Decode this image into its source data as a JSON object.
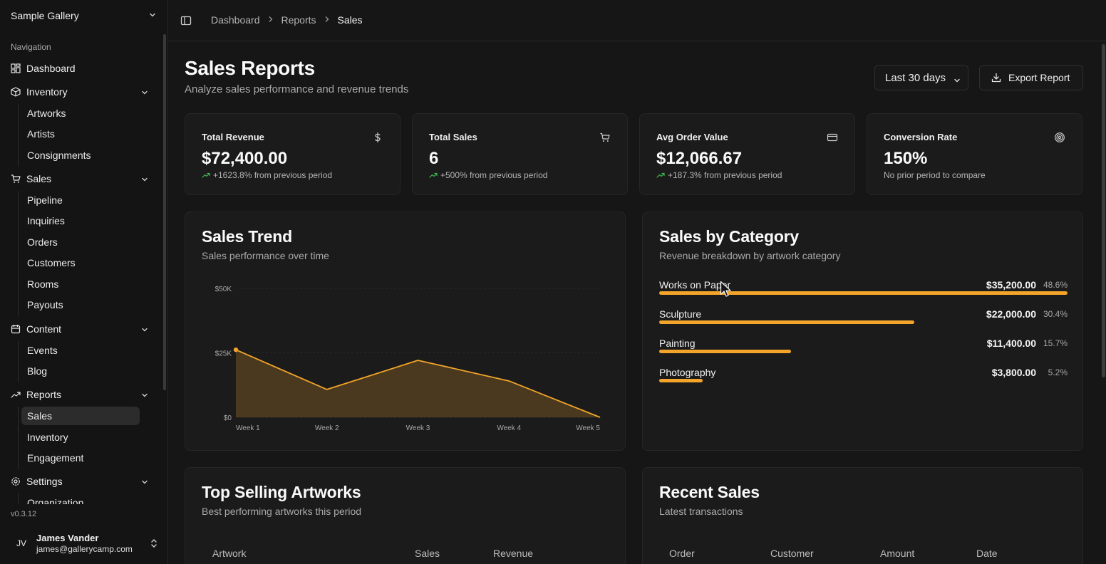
{
  "sidebar": {
    "org_name": "Sample Gallery",
    "nav_heading": "Navigation",
    "items": [
      {
        "label": "Dashboard"
      },
      {
        "label": "Inventory",
        "children": [
          "Artworks",
          "Artists",
          "Consignments"
        ]
      },
      {
        "label": "Sales",
        "children": [
          "Pipeline",
          "Inquiries",
          "Orders",
          "Customers",
          "Rooms",
          "Payouts"
        ]
      },
      {
        "label": "Content",
        "children": [
          "Events",
          "Blog"
        ]
      },
      {
        "label": "Reports",
        "children": [
          "Sales",
          "Inventory",
          "Engagement"
        ]
      },
      {
        "label": "Settings",
        "children": [
          "Organization"
        ]
      }
    ],
    "version": "v0.3.12",
    "user": {
      "initials": "JV",
      "name": "James Vander",
      "email": "james@gallerycamp.com"
    }
  },
  "breadcrumb": [
    "Dashboard",
    "Reports",
    "Sales"
  ],
  "header": {
    "title": "Sales Reports",
    "subtitle": "Analyze sales performance and revenue trends",
    "range_select": "Last 30 days",
    "export_label": "Export Report"
  },
  "stats": [
    {
      "label": "Total Revenue",
      "value": "$72,400.00",
      "change": "+1623.8% from previous period",
      "icon": "dollar-icon"
    },
    {
      "label": "Total Sales",
      "value": "6",
      "change": "+500% from previous period",
      "icon": "cart-icon"
    },
    {
      "label": "Avg Order Value",
      "value": "$12,066.67",
      "change": "+187.3% from previous period",
      "icon": "credit-card-icon"
    },
    {
      "label": "Conversion Rate",
      "value": "150%",
      "change": "No prior period to compare",
      "icon": "target-icon"
    }
  ],
  "sales_trend": {
    "title": "Sales Trend",
    "subtitle": "Sales performance over time"
  },
  "chart_data": {
    "type": "area",
    "categories": [
      "Week 1",
      "Week 2",
      "Week 3",
      "Week 4",
      "Week 5"
    ],
    "values": [
      26200,
      10800,
      22100,
      14100,
      0
    ],
    "ylim": [
      0,
      50000
    ],
    "yticks": [
      0,
      25000,
      50000
    ],
    "ytick_labels": [
      "$0",
      "$25K",
      "$50K"
    ],
    "grid": true,
    "color": "#f2a52a"
  },
  "sales_by_category": {
    "title": "Sales by Category",
    "subtitle": "Revenue breakdown by artwork category",
    "rows": [
      {
        "name": "Works on Paper",
        "amount": "$35,200.00",
        "pct": "48.6%",
        "share": 0.486
      },
      {
        "name": "Sculpture",
        "amount": "$22,000.00",
        "pct": "30.4%",
        "share": 0.304
      },
      {
        "name": "Painting",
        "amount": "$11,400.00",
        "pct": "15.7%",
        "share": 0.157
      },
      {
        "name": "Photography",
        "amount": "$3,800.00",
        "pct": "5.2%",
        "share": 0.052
      }
    ]
  },
  "top_selling": {
    "title": "Top Selling Artworks",
    "subtitle": "Best performing artworks this period",
    "columns": [
      "Artwork",
      "Sales",
      "Revenue"
    ]
  },
  "recent_sales": {
    "title": "Recent Sales",
    "subtitle": "Latest transactions",
    "columns": [
      "Order",
      "Customer",
      "Amount",
      "Date"
    ]
  },
  "colors": {
    "accent": "#f2a52a",
    "positive": "#3fb950",
    "background": "#161616",
    "card": "#1b1b1b"
  }
}
